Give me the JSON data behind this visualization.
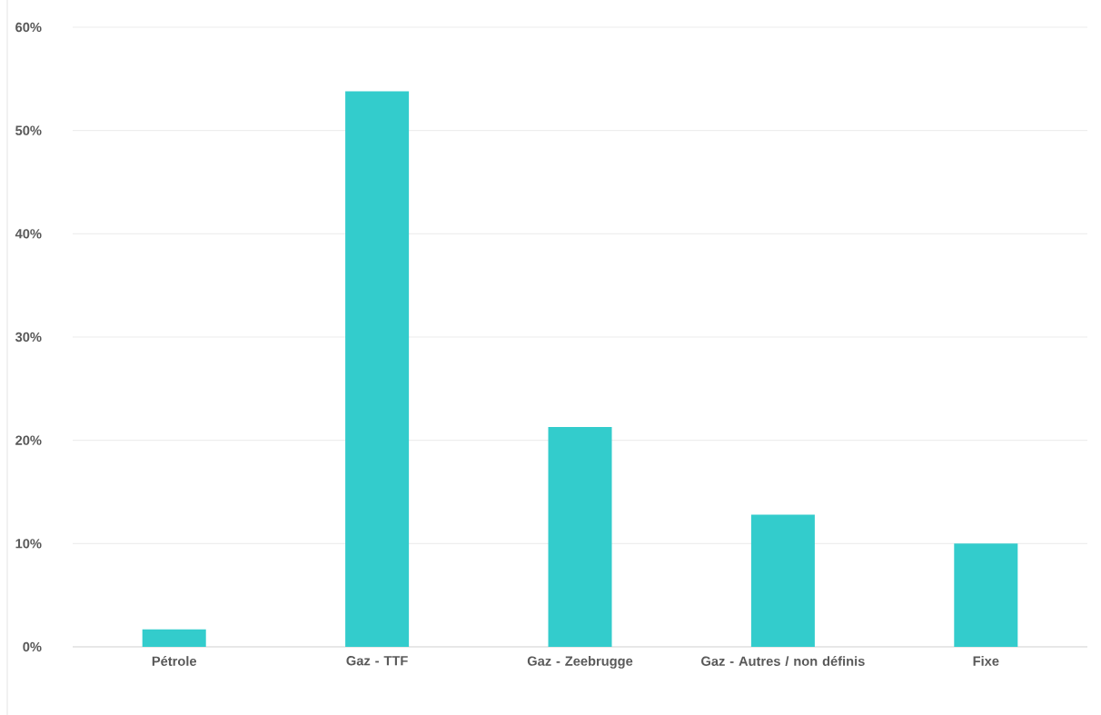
{
  "chart_data": {
    "type": "bar",
    "categories": [
      "Pétrole",
      "Gaz - TTF",
      "Gaz - Zeebrugge",
      "Gaz - Autres / non définis",
      "Fixe"
    ],
    "values": [
      1.7,
      53.8,
      21.3,
      12.8,
      10.0
    ],
    "color": "#33cccc",
    "ylim": [
      0,
      60
    ],
    "yticks": [
      {
        "value": 0,
        "label": "0%"
      },
      {
        "value": 10,
        "label": "10%"
      },
      {
        "value": 20,
        "label": "20%"
      },
      {
        "value": 30,
        "label": "30%"
      },
      {
        "value": 40,
        "label": "40%"
      },
      {
        "value": 50,
        "label": "50%"
      },
      {
        "value": 60,
        "label": "60%"
      }
    ],
    "grid": "y"
  }
}
